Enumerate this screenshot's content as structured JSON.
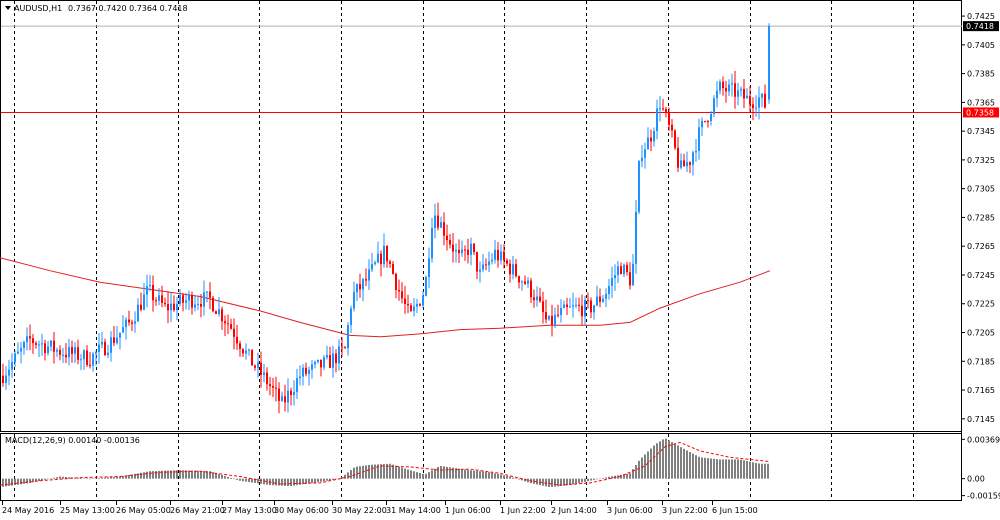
{
  "colors": {
    "background": "#ffffff",
    "bull": "#1e90ff",
    "bear": "#ff0000",
    "ma": "#e02020",
    "grid": "#000000",
    "bid_line": "#a9b4c2",
    "level_line": "#ff0000",
    "histogram": "#808080",
    "signal": "#ff0000"
  },
  "header": {
    "menu_icon": "triangle-down-icon",
    "symbol": "AUDUSD,H1",
    "ohlc": "0.7367 0.7420 0.7364 0.7418"
  },
  "chart_data": [
    {
      "type": "candlestick",
      "symbol": "AUDUSD",
      "timeframe": "H1",
      "ylim": [
        0.714,
        0.7432
      ],
      "y_ticks": [
        "0.7425",
        "0.7405",
        "0.7385",
        "0.7365",
        "0.7345",
        "0.7325",
        "0.7305",
        "0.7285",
        "0.7265",
        "0.7245",
        "0.7225",
        "0.7205",
        "0.7185",
        "0.7165",
        "0.7145"
      ],
      "x_labels": [
        "24 May 2016",
        "25 May 13:00",
        "26 May 05:00",
        "26 May 21:00",
        "27 May 13:00",
        "30 May 06:00",
        "30 May 22:00",
        "31 May 14:00",
        "1 Jun 06:00",
        "1 Jun 22:00",
        "2 Jun 14:00",
        "3 Jun 06:00",
        "3 Jun 22:00",
        "6 Jun 15:00"
      ],
      "grid": "vertical dashed",
      "bid_price": "0.7418",
      "level_price": "0.7358",
      "ma_points": [
        [
          0,
          0.7257
        ],
        [
          50,
          0.7248
        ],
        [
          100,
          0.724
        ],
        [
          150,
          0.7235
        ],
        [
          200,
          0.723
        ],
        [
          260,
          0.722
        ],
        [
          300,
          0.7212
        ],
        [
          350,
          0.7203
        ],
        [
          380,
          0.7202
        ],
        [
          420,
          0.7204
        ],
        [
          460,
          0.7207
        ],
        [
          500,
          0.7208
        ],
        [
          550,
          0.721
        ],
        [
          600,
          0.721
        ],
        [
          630,
          0.7212
        ],
        [
          660,
          0.7222
        ],
        [
          700,
          0.7232
        ],
        [
          740,
          0.724
        ],
        [
          770,
          0.7248
        ]
      ],
      "candle_path": [
        [
          2,
          0.7175
        ],
        [
          30,
          0.72
        ],
        [
          60,
          0.7192
        ],
        [
          90,
          0.7187
        ],
        [
          110,
          0.7198
        ],
        [
          130,
          0.7212
        ],
        [
          148,
          0.7234
        ],
        [
          165,
          0.7222
        ],
        [
          190,
          0.7228
        ],
        [
          210,
          0.7228
        ],
        [
          230,
          0.721
        ],
        [
          250,
          0.7186
        ],
        [
          268,
          0.717
        ],
        [
          282,
          0.7155
        ],
        [
          300,
          0.7175
        ],
        [
          330,
          0.7185
        ],
        [
          345,
          0.7193
        ],
        [
          352,
          0.723
        ],
        [
          365,
          0.724
        ],
        [
          385,
          0.7262
        ],
        [
          400,
          0.7232
        ],
        [
          410,
          0.7215
        ],
        [
          425,
          0.7235
        ],
        [
          433,
          0.729
        ],
        [
          445,
          0.7275
        ],
        [
          460,
          0.7255
        ],
        [
          470,
          0.7265
        ],
        [
          480,
          0.7245
        ],
        [
          495,
          0.726
        ],
        [
          510,
          0.725
        ],
        [
          525,
          0.724
        ],
        [
          535,
          0.723
        ],
        [
          548,
          0.721
        ],
        [
          560,
          0.7218
        ],
        [
          575,
          0.7222
        ],
        [
          590,
          0.7222
        ],
        [
          605,
          0.7232
        ],
        [
          620,
          0.7252
        ],
        [
          632,
          0.724
        ],
        [
          640,
          0.733
        ],
        [
          650,
          0.734
        ],
        [
          660,
          0.7365
        ],
        [
          670,
          0.7345
        ],
        [
          680,
          0.7318
        ],
        [
          690,
          0.7325
        ],
        [
          700,
          0.7345
        ],
        [
          710,
          0.736
        ],
        [
          720,
          0.7375
        ],
        [
          735,
          0.7372
        ],
        [
          750,
          0.7366
        ],
        [
          760,
          0.7368
        ],
        [
          765,
          0.7363
        ]
      ],
      "last_candle": {
        "open": 0.7367,
        "high": 0.742,
        "low": 0.7364,
        "close": 0.7418
      }
    },
    {
      "type": "histogram",
      "indicator": "MACD",
      "label": "MACD(12,26,9) 0.00140 -0.00136",
      "ylim": [
        -0.002,
        0.004
      ],
      "y_ticks": [
        "0.00369",
        "0.00",
        "-0.00159"
      ],
      "hist_points": [
        [
          0,
          -0.0008
        ],
        [
          30,
          -0.0004
        ],
        [
          60,
          0.0002
        ],
        [
          90,
          0.0
        ],
        [
          120,
          0.0002
        ],
        [
          150,
          0.0007
        ],
        [
          180,
          0.0008
        ],
        [
          210,
          0.0007
        ],
        [
          240,
          -0.0002
        ],
        [
          270,
          -0.0006
        ],
        [
          290,
          -0.0007
        ],
        [
          320,
          -0.0003
        ],
        [
          340,
          0.0
        ],
        [
          355,
          0.0011
        ],
        [
          370,
          0.0013
        ],
        [
          390,
          0.0014
        ],
        [
          410,
          0.0008
        ],
        [
          425,
          0.0004
        ],
        [
          440,
          0.0012
        ],
        [
          455,
          0.001
        ],
        [
          470,
          0.0008
        ],
        [
          490,
          0.0006
        ],
        [
          510,
          0.0002
        ],
        [
          530,
          -0.0004
        ],
        [
          550,
          -0.0008
        ],
        [
          570,
          -0.0006
        ],
        [
          590,
          -0.0002
        ],
        [
          610,
          0.0002
        ],
        [
          630,
          0.0005
        ],
        [
          640,
          0.0018
        ],
        [
          655,
          0.0032
        ],
        [
          665,
          0.0038
        ],
        [
          680,
          0.003
        ],
        [
          700,
          0.002
        ],
        [
          720,
          0.0018
        ],
        [
          740,
          0.0018
        ],
        [
          760,
          0.0014
        ],
        [
          770,
          0.0014
        ]
      ],
      "signal_points": [
        [
          0,
          -0.0006
        ],
        [
          40,
          -0.0002
        ],
        [
          80,
          0.0001
        ],
        [
          120,
          0.0002
        ],
        [
          160,
          0.0006
        ],
        [
          200,
          0.0007
        ],
        [
          240,
          0.0002
        ],
        [
          280,
          -0.0005
        ],
        [
          320,
          -0.0004
        ],
        [
          350,
          0.0002
        ],
        [
          380,
          0.0012
        ],
        [
          410,
          0.0011
        ],
        [
          440,
          0.0008
        ],
        [
          470,
          0.0009
        ],
        [
          500,
          0.0005
        ],
        [
          530,
          -0.0002
        ],
        [
          560,
          -0.0006
        ],
        [
          590,
          -0.0004
        ],
        [
          620,
          0.0002
        ],
        [
          645,
          0.0012
        ],
        [
          665,
          0.003
        ],
        [
          680,
          0.0034
        ],
        [
          700,
          0.0026
        ],
        [
          730,
          0.002
        ],
        [
          770,
          0.0016
        ]
      ]
    }
  ]
}
